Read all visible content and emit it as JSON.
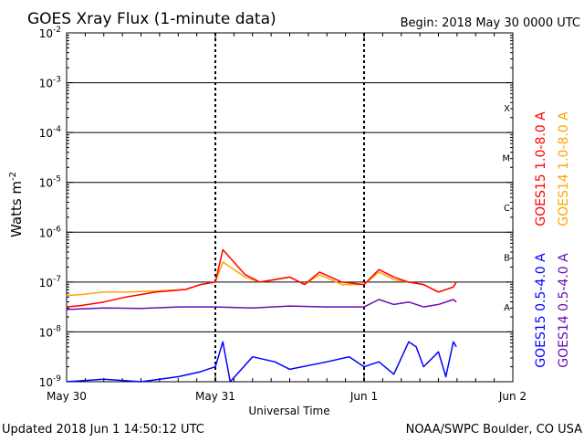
{
  "chart_data": {
    "type": "line",
    "title": "GOES Xray Flux (1-minute data)",
    "begin_label": "Begin:  2018 May 30 0000 UTC",
    "xlabel": "Universal Time",
    "ylabel_text": "Watts m",
    "ylabel_superscript": "-2",
    "footer_left": "Updated 2018 Jun  1 14:50:12 UTC",
    "footer_right": "NOAA/SWPC Boulder, CO USA",
    "x_ticks": [
      {
        "label": "May 30",
        "day": 0
      },
      {
        "label": "May 31",
        "day": 1
      },
      {
        "label": "Jun 1",
        "day": 2
      },
      {
        "label": "Jun 2",
        "day": 3
      }
    ],
    "xlim_days": [
      0,
      3
    ],
    "ylim_exponent": [
      -9,
      -2
    ],
    "y_scale": "log",
    "y_ticks": [
      {
        "base": "10",
        "exp": "-2",
        "value": -2
      },
      {
        "base": "10",
        "exp": "-3",
        "value": -3
      },
      {
        "base": "10",
        "exp": "-4",
        "value": -4
      },
      {
        "base": "10",
        "exp": "-5",
        "value": -5
      },
      {
        "base": "10",
        "exp": "-6",
        "value": -6
      },
      {
        "base": "10",
        "exp": "-7",
        "value": -7
      },
      {
        "base": "10",
        "exp": "-8",
        "value": -8
      },
      {
        "base": "10",
        "exp": "-9",
        "value": -9
      }
    ],
    "flare_classes": [
      {
        "label": "X",
        "exponent": -4
      },
      {
        "label": "M",
        "exponent": -5
      },
      {
        "label": "C",
        "exponent": -6
      },
      {
        "label": "B",
        "exponent": -7
      },
      {
        "label": "A",
        "exponent": -8
      }
    ],
    "horizontal_gridlines_exponent": [
      -3,
      -4,
      -5,
      -6,
      -7,
      -8
    ],
    "day_gridlines": [
      1,
      2
    ],
    "legend": [
      {
        "label": "GOES15 1.0-8.0 A",
        "color": "#ff0000"
      },
      {
        "label": "GOES14 1.0-8.0 A",
        "color": "#ffa500"
      },
      {
        "label": "GOES15 0.5-4.0 A",
        "color": "#0000ff"
      },
      {
        "label": "GOES14 0.5-4.0 A",
        "color": "#6a0dad"
      }
    ],
    "series": [
      {
        "name": "GOES15 1.0-8.0 A",
        "color": "#ff0000",
        "x_days": [
          0,
          0.1,
          0.25,
          0.4,
          0.6,
          0.8,
          0.9,
          1.0,
          1.05,
          1.2,
          1.3,
          1.5,
          1.6,
          1.7,
          1.85,
          2.0,
          2.1,
          2.2,
          2.3,
          2.4,
          2.5,
          2.6,
          2.62
        ],
        "log10_flux": [
          -7.5,
          -7.47,
          -7.4,
          -7.3,
          -7.2,
          -7.15,
          -7.05,
          -7.0,
          -6.35,
          -6.85,
          -7.0,
          -6.9,
          -7.05,
          -6.8,
          -7.0,
          -7.05,
          -6.75,
          -6.9,
          -7.0,
          -7.05,
          -7.2,
          -7.1,
          -7.0
        ]
      },
      {
        "name": "GOES14 1.0-8.0 A",
        "color": "#ffa500",
        "x_days": [
          0,
          0.1,
          0.25,
          0.4,
          0.6,
          0.8,
          0.9,
          1.0,
          1.05,
          1.2,
          1.3,
          1.5,
          1.6,
          1.7,
          1.85,
          2.0,
          2.1,
          2.2,
          2.3,
          2.4,
          2.5,
          2.6,
          2.62
        ],
        "log10_flux": [
          -7.27,
          -7.25,
          -7.2,
          -7.2,
          -7.18,
          -7.15,
          -7.05,
          -7.0,
          -6.6,
          -6.9,
          -7.0,
          -6.9,
          -7.05,
          -6.85,
          -7.05,
          -7.05,
          -6.8,
          -6.95,
          -7.0,
          -7.05,
          -7.2,
          -7.1,
          -7.0
        ]
      },
      {
        "name": "GOES14 0.5-4.0 A",
        "color": "#6a0dad",
        "x_days": [
          0,
          0.25,
          0.5,
          0.75,
          1.0,
          1.25,
          1.5,
          1.75,
          2.0,
          2.1,
          2.2,
          2.3,
          2.4,
          2.5,
          2.6,
          2.62
        ],
        "log10_flux": [
          -7.55,
          -7.52,
          -7.53,
          -7.5,
          -7.5,
          -7.52,
          -7.48,
          -7.5,
          -7.5,
          -7.35,
          -7.45,
          -7.4,
          -7.5,
          -7.45,
          -7.35,
          -7.4
        ]
      },
      {
        "name": "GOES15 0.5-4.0 A",
        "color": "#0000ff",
        "x_days": [
          0,
          0.25,
          0.5,
          0.75,
          0.9,
          1.0,
          1.05,
          1.1,
          1.25,
          1.4,
          1.5,
          1.75,
          1.9,
          2.0,
          2.1,
          2.2,
          2.3,
          2.35,
          2.4,
          2.5,
          2.55,
          2.6,
          2.62
        ],
        "log10_flux": [
          -9.0,
          -8.95,
          -9.0,
          -8.9,
          -8.8,
          -8.7,
          -8.2,
          -9.0,
          -8.5,
          -8.6,
          -8.75,
          -8.6,
          -8.5,
          -8.7,
          -8.6,
          -8.85,
          -8.2,
          -8.3,
          -8.7,
          -8.4,
          -8.9,
          -8.2,
          -8.3
        ]
      }
    ]
  }
}
